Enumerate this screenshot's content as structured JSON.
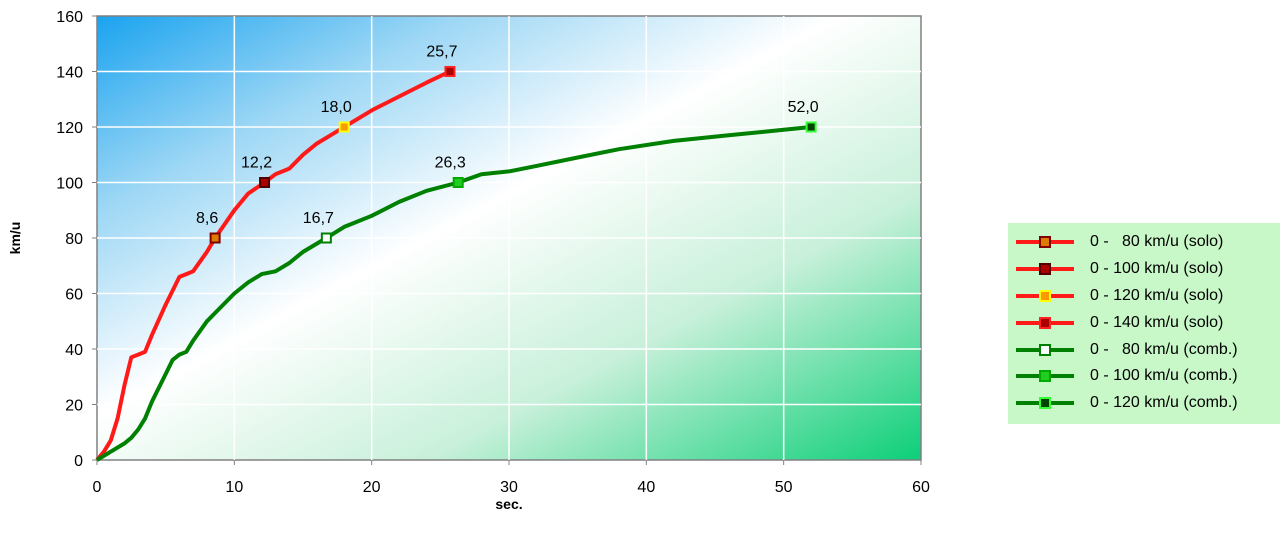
{
  "chart_data": {
    "type": "line",
    "title": "",
    "xlabel": "sec.",
    "ylabel": "km/u",
    "xlim": [
      0,
      60
    ],
    "ylim": [
      0,
      160
    ],
    "xticks": [
      0,
      10,
      20,
      30,
      40,
      50,
      60
    ],
    "yticks": [
      0,
      20,
      40,
      60,
      80,
      100,
      120,
      140,
      160
    ],
    "grid": true,
    "legend_position": "right",
    "series": [
      {
        "name": "solo",
        "color": "#ff1a1a",
        "points": [
          [
            0,
            0
          ],
          [
            0.5,
            3
          ],
          [
            1,
            7
          ],
          [
            1.5,
            15
          ],
          [
            2,
            27
          ],
          [
            2.5,
            37
          ],
          [
            3,
            38
          ],
          [
            3.5,
            39
          ],
          [
            4,
            45
          ],
          [
            5,
            56
          ],
          [
            6,
            66
          ],
          [
            6.5,
            67
          ],
          [
            7,
            68
          ],
          [
            8,
            75
          ],
          [
            8.6,
            80
          ],
          [
            10,
            90
          ],
          [
            11,
            96
          ],
          [
            12.2,
            100
          ],
          [
            13,
            103
          ],
          [
            14,
            105
          ],
          [
            15,
            110
          ],
          [
            16,
            114
          ],
          [
            17,
            117
          ],
          [
            18,
            120
          ],
          [
            20,
            126
          ],
          [
            22,
            131
          ],
          [
            24,
            136
          ],
          [
            25.7,
            140
          ]
        ]
      },
      {
        "name": "comb.",
        "color": "#008000",
        "points": [
          [
            0,
            0
          ],
          [
            1,
            3
          ],
          [
            2,
            6
          ],
          [
            2.5,
            8
          ],
          [
            3,
            11
          ],
          [
            3.5,
            15
          ],
          [
            4,
            21
          ],
          [
            5,
            31
          ],
          [
            5.5,
            36
          ],
          [
            6,
            38
          ],
          [
            6.5,
            39
          ],
          [
            7,
            43
          ],
          [
            8,
            50
          ],
          [
            9,
            55
          ],
          [
            10,
            60
          ],
          [
            11,
            64
          ],
          [
            12,
            67
          ],
          [
            13,
            68
          ],
          [
            14,
            71
          ],
          [
            15,
            75
          ],
          [
            16.7,
            80
          ],
          [
            18,
            84
          ],
          [
            20,
            88
          ],
          [
            22,
            93
          ],
          [
            24,
            97
          ],
          [
            26.3,
            100
          ],
          [
            28,
            103
          ],
          [
            30,
            104
          ],
          [
            32,
            106
          ],
          [
            35,
            109
          ],
          [
            38,
            112
          ],
          [
            42,
            115
          ],
          [
            46,
            117
          ],
          [
            50,
            119
          ],
          [
            52,
            120
          ]
        ]
      }
    ],
    "markers": [
      {
        "x": 8.6,
        "y": 80,
        "label": "8,6",
        "series": "solo",
        "fill": "#dd7a00",
        "border": "#800000"
      },
      {
        "x": 12.2,
        "y": 100,
        "label": "12,2",
        "series": "solo",
        "fill": "#aa0000",
        "border": "#550000"
      },
      {
        "x": 18.0,
        "y": 120,
        "label": "18,0",
        "series": "solo",
        "fill": "#ff9900",
        "border": "#ffff00"
      },
      {
        "x": 25.7,
        "y": 140,
        "label": "25,7",
        "series": "solo",
        "fill": "#aa0000",
        "border": "#ff2222"
      },
      {
        "x": 16.7,
        "y": 80,
        "label": "16,7",
        "series": "comb.",
        "fill": "#ffffff",
        "border": "#008000"
      },
      {
        "x": 26.3,
        "y": 100,
        "label": "26,3",
        "series": "comb.",
        "fill": "#22cc22",
        "border": "#00aa00"
      },
      {
        "x": 52.0,
        "y": 120,
        "label": "52,0",
        "series": "comb.",
        "fill": "#004400",
        "border": "#33ff33"
      }
    ],
    "legend": [
      {
        "label": "0 -   80 km/u (solo)",
        "line": "#ff1a1a",
        "fill": "#dd7a00",
        "border": "#800000"
      },
      {
        "label": "0 - 100 km/u (solo)",
        "line": "#ff1a1a",
        "fill": "#aa0000",
        "border": "#550000"
      },
      {
        "label": "0 - 120 km/u (solo)",
        "line": "#ff1a1a",
        "fill": "#ff9900",
        "border": "#ffff00"
      },
      {
        "label": "0 - 140 km/u (solo)",
        "line": "#ff1a1a",
        "fill": "#aa0000",
        "border": "#ff2222"
      },
      {
        "label": "0 -   80 km/u (comb.)",
        "line": "#008000",
        "fill": "#ffffff",
        "border": "#008000"
      },
      {
        "label": "0 - 100 km/u (comb.)",
        "line": "#008000",
        "fill": "#22cc22",
        "border": "#00aa00"
      },
      {
        "label": "0 - 120 km/u (comb.)",
        "line": "#008000",
        "fill": "#004400",
        "border": "#33ff33"
      }
    ]
  }
}
